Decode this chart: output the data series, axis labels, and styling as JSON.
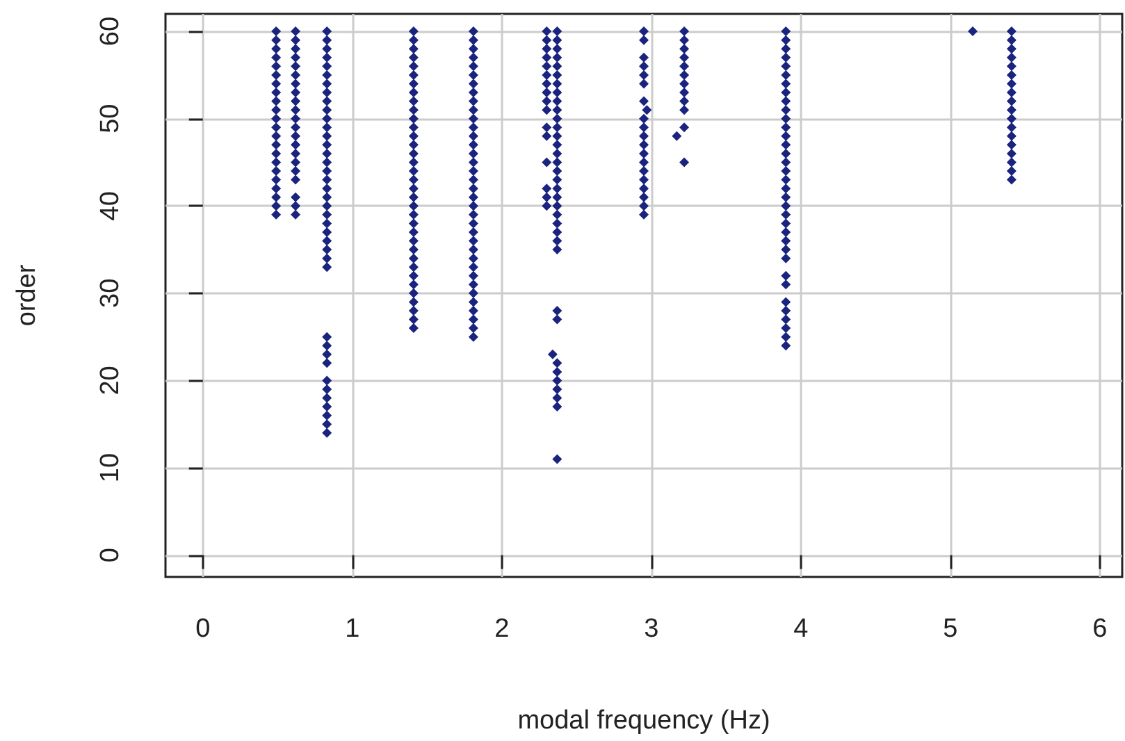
{
  "chart_data": {
    "type": "scatter",
    "xlabel": "modal frequency (Hz)",
    "ylabel": "order",
    "xlim": [
      -0.25,
      6.15
    ],
    "ylim": [
      -2.5,
      62
    ],
    "xticks": [
      0,
      1,
      2,
      3,
      4,
      5,
      6
    ],
    "yticks": [
      0,
      10,
      20,
      30,
      40,
      50,
      60
    ],
    "grid": true,
    "marker": "diamond",
    "series": [
      {
        "color": "#1a237e",
        "x": [
          0.49,
          0.49,
          0.49,
          0.49,
          0.49,
          0.49,
          0.49,
          0.49,
          0.49,
          0.49,
          0.49,
          0.49,
          0.49,
          0.49,
          0.49,
          0.49,
          0.49,
          0.49,
          0.49,
          0.49,
          0.49,
          0.49
        ],
        "values": [
          39,
          40,
          41,
          42,
          43,
          44,
          45,
          46,
          47,
          48,
          49,
          50,
          51,
          52,
          53,
          54,
          55,
          56,
          57,
          58,
          59,
          60
        ]
      },
      {
        "color": "#1a237e",
        "x": [
          0.62,
          0.62,
          0.62,
          0.62,
          0.62,
          0.62,
          0.62,
          0.62,
          0.62,
          0.62,
          0.62,
          0.62,
          0.62,
          0.62,
          0.62,
          0.62,
          0.62,
          0.62,
          0.62,
          0.62,
          0.62
        ],
        "values": [
          39,
          40,
          41,
          43,
          44,
          45,
          46,
          47,
          48,
          49,
          50,
          51,
          52,
          53,
          54,
          55,
          56,
          57,
          58,
          59,
          60
        ]
      },
      {
        "color": "#1a237e",
        "x": [
          0.83,
          0.83,
          0.83,
          0.83,
          0.83,
          0.83,
          0.83,
          0.83,
          0.83,
          0.83,
          0.83,
          0.83,
          0.83,
          0.83,
          0.83,
          0.83,
          0.83,
          0.83,
          0.83,
          0.83,
          0.83,
          0.83,
          0.83,
          0.83,
          0.83,
          0.83,
          0.83,
          0.83,
          0.83,
          0.83,
          0.83,
          0.83,
          0.83,
          0.83,
          0.83,
          0.83,
          0.83,
          0.83,
          0.83
        ],
        "values": [
          14,
          15,
          16,
          17,
          18,
          19,
          20,
          22,
          23,
          24,
          25,
          33,
          34,
          35,
          36,
          37,
          38,
          39,
          40,
          41,
          42,
          43,
          44,
          45,
          46,
          47,
          48,
          49,
          50,
          51,
          52,
          53,
          54,
          55,
          56,
          57,
          58,
          59,
          60
        ]
      },
      {
        "color": "#1a237e",
        "x": [
          1.41,
          1.41,
          1.41,
          1.41,
          1.41,
          1.41,
          1.41,
          1.41,
          1.41,
          1.41,
          1.41,
          1.41,
          1.41,
          1.41,
          1.41,
          1.41,
          1.41,
          1.41,
          1.41,
          1.41,
          1.41,
          1.41,
          1.41,
          1.41,
          1.41,
          1.41,
          1.41,
          1.41,
          1.41,
          1.41,
          1.41,
          1.41,
          1.41,
          1.41,
          1.41
        ],
        "values": [
          26,
          27,
          28,
          29,
          30,
          31,
          32,
          33,
          34,
          35,
          36,
          37,
          38,
          39,
          40,
          41,
          42,
          43,
          44,
          45,
          46,
          47,
          48,
          49,
          50,
          51,
          52,
          53,
          54,
          55,
          56,
          57,
          58,
          59,
          60
        ]
      },
      {
        "color": "#1a237e",
        "x": [
          1.81,
          1.81,
          1.81,
          1.81,
          1.81,
          1.81,
          1.81,
          1.81,
          1.81,
          1.81,
          1.81,
          1.81,
          1.81,
          1.81,
          1.81,
          1.81,
          1.81,
          1.81,
          1.81,
          1.81,
          1.81,
          1.81,
          1.81,
          1.81,
          1.81,
          1.81,
          1.81,
          1.81,
          1.81,
          1.81,
          1.81,
          1.81,
          1.81,
          1.81,
          1.81,
          1.81
        ],
        "values": [
          25,
          26,
          27,
          28,
          29,
          30,
          31,
          32,
          33,
          34,
          35,
          36,
          37,
          38,
          39,
          40,
          41,
          42,
          43,
          44,
          45,
          46,
          47,
          48,
          49,
          50,
          51,
          52,
          53,
          54,
          55,
          56,
          57,
          58,
          59,
          60
        ]
      },
      {
        "color": "#1a237e",
        "x": [
          2.3,
          2.3,
          2.3,
          2.3,
          2.3,
          2.3,
          2.3,
          2.3,
          2.3,
          2.3,
          2.3,
          2.3,
          2.3,
          2.3,
          2.3,
          2.3
        ],
        "values": [
          40,
          41,
          42,
          45,
          48,
          49,
          51,
          52,
          53,
          54,
          55,
          56,
          57,
          58,
          59,
          60
        ]
      },
      {
        "color": "#1a237e",
        "x": [
          2.37,
          2.37,
          2.37,
          2.37,
          2.37,
          2.37,
          2.37,
          2.34,
          2.37,
          2.37,
          2.37,
          2.37,
          2.37,
          2.37,
          2.37,
          2.37,
          2.37,
          2.37,
          2.37,
          2.37,
          2.37,
          2.37,
          2.37,
          2.37,
          2.37,
          2.37,
          2.37,
          2.37,
          2.37,
          2.37,
          2.37,
          2.37,
          2.37,
          2.37,
          2.37,
          2.37
        ],
        "values": [
          11,
          17,
          18,
          19,
          20,
          21,
          22,
          23,
          27,
          28,
          35,
          36,
          37,
          38,
          39,
          40,
          41,
          42,
          43,
          44,
          45,
          46,
          47,
          48,
          49,
          50,
          51,
          52,
          53,
          54,
          55,
          56,
          57,
          58,
          59,
          60
        ]
      },
      {
        "color": "#1a237e",
        "x": [
          2.95,
          2.95,
          2.95,
          2.95,
          2.95,
          2.95,
          2.95,
          2.95,
          2.95,
          2.95,
          2.95,
          2.95,
          2.97,
          2.95,
          2.95,
          2.95,
          2.95,
          2.95,
          2.95,
          2.95
        ],
        "values": [
          39,
          40,
          41,
          42,
          43,
          44,
          45,
          46,
          47,
          48,
          49,
          50,
          51,
          52,
          54,
          55,
          56,
          57,
          59,
          60
        ]
      },
      {
        "color": "#1a237e",
        "x": [
          3.22,
          3.17,
          3.22,
          3.22,
          3.22,
          3.22,
          3.22,
          3.22,
          3.22,
          3.22,
          3.22,
          3.22,
          3.22
        ],
        "values": [
          45,
          48,
          49,
          51,
          52,
          53,
          54,
          55,
          56,
          57,
          58,
          59,
          60
        ]
      },
      {
        "color": "#1a237e",
        "x": [
          3.9,
          3.9,
          3.9,
          3.9,
          3.9,
          3.9,
          3.9,
          3.9,
          3.9,
          3.9,
          3.9,
          3.9,
          3.9,
          3.9,
          3.9,
          3.9,
          3.9,
          3.9,
          3.9,
          3.9,
          3.9,
          3.9,
          3.9,
          3.9,
          3.9,
          3.9,
          3.9,
          3.9,
          3.9,
          3.9,
          3.9,
          3.9,
          3.9,
          3.9,
          3.9
        ],
        "values": [
          24,
          25,
          26,
          27,
          28,
          29,
          31,
          32,
          34,
          35,
          36,
          37,
          38,
          39,
          40,
          41,
          42,
          43,
          44,
          45,
          46,
          47,
          48,
          49,
          50,
          51,
          52,
          53,
          54,
          55,
          56,
          57,
          58,
          59,
          60
        ]
      },
      {
        "color": "#1a237e",
        "x": [
          5.15
        ],
        "values": [
          60
        ]
      },
      {
        "color": "#1a237e",
        "x": [
          5.41,
          5.41,
          5.41,
          5.41,
          5.41,
          5.41,
          5.41,
          5.41,
          5.41,
          5.41,
          5.41,
          5.41,
          5.41,
          5.41,
          5.41,
          5.41,
          5.41,
          5.41
        ],
        "values": [
          43,
          44,
          45,
          46,
          47,
          48,
          49,
          50,
          51,
          52,
          53,
          54,
          55,
          56,
          57,
          58,
          59,
          60
        ]
      }
    ]
  }
}
